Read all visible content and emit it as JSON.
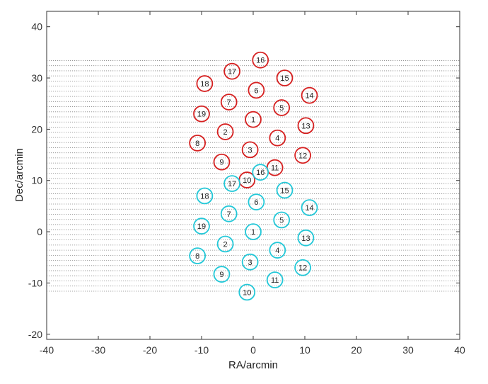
{
  "chart_data": {
    "type": "scatter",
    "title": "",
    "xlabel": "RA/arcmin",
    "ylabel": "Dec/arcmin",
    "xlim": [
      -40,
      40
    ],
    "ylim": [
      -21,
      43
    ],
    "xticks": [
      -40,
      -30,
      -20,
      -10,
      0,
      10,
      20,
      30,
      40
    ],
    "yticks": [
      -20,
      -10,
      0,
      10,
      20,
      30,
      40
    ],
    "grid": false,
    "scan_lines": {
      "style": "dotted",
      "color": "#888888",
      "x_range": [
        -40,
        40
      ],
      "y_values": [
        -11.6,
        -10.6,
        -9.6,
        -8.6,
        -7.6,
        -6.6,
        -5.6,
        -4.6,
        -3.6,
        -2.6,
        -1.6,
        -0.6,
        0.4,
        1.4,
        2.4,
        3.4,
        4.4,
        5.4,
        6.4,
        7.4,
        8.4,
        9.4,
        10.4,
        11.4,
        12.4,
        13.4,
        14.4,
        15.4,
        16.4,
        17.4,
        18.4,
        19.4,
        20.4,
        21.4,
        22.4,
        23.4,
        24.4,
        25.4,
        26.4,
        27.4,
        28.4,
        29.4,
        30.4,
        31.4,
        32.4,
        33.4
      ]
    },
    "series": [
      {
        "color": "#d62020",
        "marker_radius": 1.5,
        "points": [
          {
            "label": "1",
            "x": 0.0,
            "y": 21.9
          },
          {
            "label": "2",
            "x": -5.4,
            "y": 19.5
          },
          {
            "label": "3",
            "x": -0.6,
            "y": 16.0
          },
          {
            "label": "4",
            "x": 4.7,
            "y": 18.3
          },
          {
            "label": "5",
            "x": 5.5,
            "y": 24.2
          },
          {
            "label": "6",
            "x": 0.6,
            "y": 27.6
          },
          {
            "label": "7",
            "x": -4.7,
            "y": 25.3
          },
          {
            "label": "8",
            "x": -10.8,
            "y": 17.3
          },
          {
            "label": "9",
            "x": -6.1,
            "y": 13.6
          },
          {
            "label": "10",
            "x": -1.2,
            "y": 10.1
          },
          {
            "label": "11",
            "x": 4.2,
            "y": 12.5
          },
          {
            "label": "12",
            "x": 9.6,
            "y": 14.9
          },
          {
            "label": "13",
            "x": 10.2,
            "y": 20.7
          },
          {
            "label": "14",
            "x": 10.9,
            "y": 26.6
          },
          {
            "label": "15",
            "x": 6.1,
            "y": 30.0
          },
          {
            "label": "16",
            "x": 1.4,
            "y": 33.5
          },
          {
            "label": "17",
            "x": -4.1,
            "y": 31.3
          },
          {
            "label": "18",
            "x": -9.4,
            "y": 28.9
          },
          {
            "label": "19",
            "x": -10.0,
            "y": 23.0
          }
        ]
      },
      {
        "color": "#22c8d8",
        "marker_radius": 1.5,
        "points": [
          {
            "label": "1",
            "x": 0.0,
            "y": 0.0
          },
          {
            "label": "2",
            "x": -5.4,
            "y": -2.4
          },
          {
            "label": "3",
            "x": -0.6,
            "y": -5.9
          },
          {
            "label": "4",
            "x": 4.7,
            "y": -3.6
          },
          {
            "label": "5",
            "x": 5.5,
            "y": 2.3
          },
          {
            "label": "6",
            "x": 0.6,
            "y": 5.8
          },
          {
            "label": "7",
            "x": -4.7,
            "y": 3.5
          },
          {
            "label": "8",
            "x": -10.8,
            "y": -4.7
          },
          {
            "label": "9",
            "x": -6.1,
            "y": -8.3
          },
          {
            "label": "10",
            "x": -1.2,
            "y": -11.8
          },
          {
            "label": "11",
            "x": 4.2,
            "y": -9.4
          },
          {
            "label": "12",
            "x": 9.6,
            "y": -7.0
          },
          {
            "label": "13",
            "x": 10.2,
            "y": -1.2
          },
          {
            "label": "14",
            "x": 10.9,
            "y": 4.7
          },
          {
            "label": "15",
            "x": 6.1,
            "y": 8.1
          },
          {
            "label": "16",
            "x": 1.4,
            "y": 11.6
          },
          {
            "label": "17",
            "x": -4.1,
            "y": 9.4
          },
          {
            "label": "18",
            "x": -9.4,
            "y": 7.0
          },
          {
            "label": "19",
            "x": -10.0,
            "y": 1.1
          }
        ]
      }
    ]
  }
}
